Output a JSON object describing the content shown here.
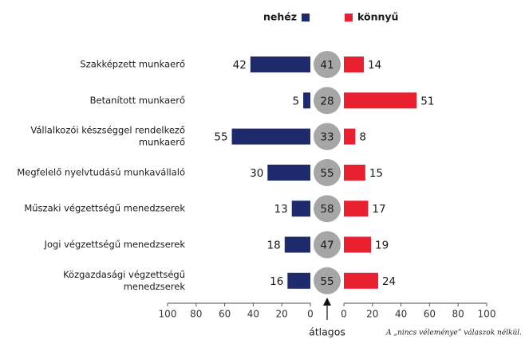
{
  "chart_data": {
    "type": "bar",
    "categories": [
      [
        "Szakképzett munkaerő"
      ],
      [
        "Betanított munkaerő"
      ],
      [
        "Vállalkozói készséggel rendelkező",
        "munkaerő"
      ],
      [
        "Megfelelő nyelvtudású munkavállaló"
      ],
      [
        "Műszaki végzettségű menedzserek"
      ],
      [
        "Jogi végzettségű menedzserek"
      ],
      [
        "Közgazdasági végzettségű",
        "menedzserek"
      ]
    ],
    "series": [
      {
        "name": "nehéz",
        "color": "#1e2a6b",
        "values": [
          42,
          5,
          55,
          30,
          13,
          18,
          16
        ]
      },
      {
        "name": "könnyű",
        "color": "#e8202f",
        "axis": "x2",
        "values": [
          14,
          51,
          8,
          15,
          17,
          19,
          24
        ]
      }
    ],
    "center_values": [
      41,
      28,
      33,
      55,
      58,
      47,
      55
    ],
    "center_color": "#a6a6a6",
    "xlim": [
      100,
      0
    ],
    "xticks": [
      100,
      80,
      60,
      40,
      20,
      0
    ],
    "x2lim": [
      0,
      100
    ],
    "x2ticks": [
      0,
      20,
      40,
      60,
      80,
      100
    ],
    "annotations": [
      "átlagos",
      "A „nincs véleménye” válaszok nélkül."
    ]
  }
}
